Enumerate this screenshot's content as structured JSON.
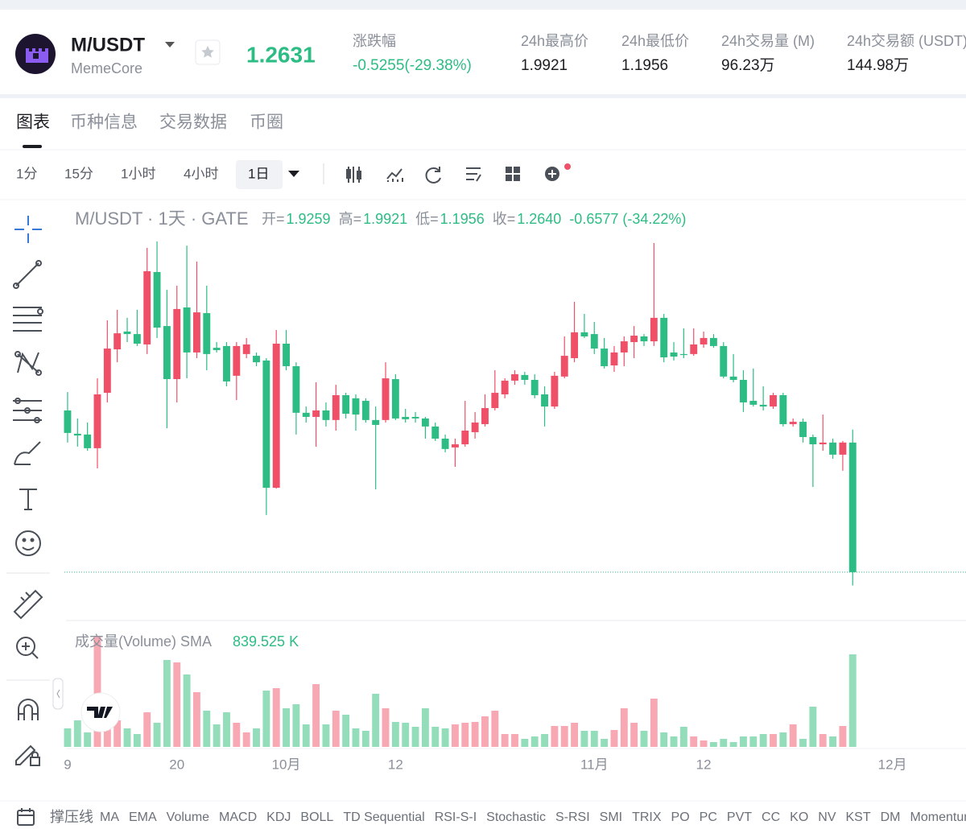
{
  "header": {
    "symbol": "M/USDT",
    "name": "MemeCore",
    "price": "1.2631",
    "change_label": "涨跌幅",
    "change": "-0.5255(-29.38%)",
    "stats": [
      {
        "label": "24h最高价",
        "value": "1.9921"
      },
      {
        "label": "24h最低价",
        "value": "1.1956"
      },
      {
        "label": "24h交易量 (M)",
        "value": "96.23万"
      },
      {
        "label": "24h交易额 (USDT)",
        "value": "144.98万"
      }
    ]
  },
  "tabs": [
    "图表",
    "币种信息",
    "交易数据",
    "币圈"
  ],
  "intervals": [
    "1分",
    "15分",
    "1小时",
    "4小时",
    "1日"
  ],
  "chart_data": {
    "type": "candlestick",
    "title": "M/USDT · 1天 · GATE",
    "legend": [
      {
        "label": "开=",
        "value": "1.9259"
      },
      {
        "label": "高=",
        "value": "1.9921"
      },
      {
        "label": "低=",
        "value": "1.1956"
      },
      {
        "label": "收=",
        "value": "1.2640"
      }
    ],
    "change": "-0.6577 (-34.22%)",
    "up_color": "#ef5068",
    "down_color": "#2dbd84",
    "volume_up_color": "#f7a8b3",
    "volume_down_color": "#93ddbb",
    "xlim": [
      -0.32,
      90.4
    ],
    "xticks": [
      {
        "value": 0,
        "label": "9"
      },
      {
        "value": 11,
        "label": "20"
      },
      {
        "value": 22,
        "label": "10月"
      },
      {
        "value": 33,
        "label": "12"
      },
      {
        "value": 53,
        "label": "11月"
      },
      {
        "value": 64,
        "label": "12"
      },
      {
        "value": 83,
        "label": "12月"
      }
    ],
    "ylim": [
      1.021,
      3.138
    ],
    "ohlc": [
      [
        2.09,
        2.184,
        1.926,
        1.975
      ],
      [
        1.971,
        2.049,
        1.905,
        1.962
      ],
      [
        1.967,
        2.028,
        1.884,
        1.897
      ],
      [
        1.897,
        2.254,
        1.794,
        2.172
      ],
      [
        2.18,
        2.55,
        2.131,
        2.406
      ],
      [
        2.402,
        2.604,
        2.336,
        2.484
      ],
      [
        2.493,
        2.563,
        2.439,
        2.48
      ],
      [
        2.48,
        2.604,
        2.419,
        2.431
      ],
      [
        2.427,
        2.92,
        2.378,
        2.801
      ],
      [
        2.797,
        2.953,
        2.46,
        2.513
      ],
      [
        2.521,
        2.706,
        1.999,
        2.25
      ],
      [
        2.25,
        2.727,
        2.131,
        2.608
      ],
      [
        2.616,
        2.932,
        2.254,
        2.386
      ],
      [
        2.386,
        2.85,
        2.357,
        2.591
      ],
      [
        2.587,
        2.727,
        2.295,
        2.378
      ],
      [
        2.41,
        2.439,
        2.386,
        2.398
      ],
      [
        2.419,
        2.439,
        2.213,
        2.238
      ],
      [
        2.267,
        2.439,
        2.143,
        2.419
      ],
      [
        2.378,
        2.46,
        2.357,
        2.427
      ],
      [
        2.369,
        2.386,
        2.316,
        2.336
      ],
      [
        2.345,
        2.357,
        1.556,
        1.695
      ],
      [
        1.695,
        2.501,
        1.691,
        2.431
      ],
      [
        2.431,
        2.501,
        2.295,
        2.316
      ],
      [
        2.316,
        2.336,
        1.967,
        2.078
      ],
      [
        2.078,
        2.11,
        2.028,
        2.057
      ],
      [
        2.057,
        2.234,
        1.905,
        2.09
      ],
      [
        2.09,
        2.131,
        2.008,
        2.041
      ],
      [
        2.041,
        2.221,
        1.987,
        2.168
      ],
      [
        2.168,
        2.18,
        2.049,
        2.073
      ],
      [
        2.152,
        2.172,
        1.987,
        2.069
      ],
      [
        2.139,
        2.152,
        2.028,
        2.041
      ],
      [
        2.041,
        2.11,
        1.687,
        2.016
      ],
      [
        2.041,
        2.336,
        2.028,
        2.254
      ],
      [
        2.25,
        2.275,
        2.041,
        2.049
      ],
      [
        2.057,
        2.098,
        2.028,
        2.045
      ],
      [
        2.057,
        2.082,
        2.028,
        2.049
      ],
      [
        2.049,
        2.057,
        1.946,
        2.008
      ],
      [
        2.008,
        2.028,
        1.934,
        1.946
      ],
      [
        1.946,
        1.967,
        1.876,
        1.893
      ],
      [
        1.901,
        1.946,
        1.802,
        1.917
      ],
      [
        1.917,
        2.139,
        1.905,
        1.987
      ],
      [
        1.979,
        2.082,
        1.946,
        2.028
      ],
      [
        2.02,
        2.172,
        2.008,
        2.102
      ],
      [
        2.102,
        2.295,
        2.09,
        2.18
      ],
      [
        2.172,
        2.254,
        2.152,
        2.242
      ],
      [
        2.242,
        2.295,
        2.221,
        2.275
      ],
      [
        2.271,
        2.287,
        2.221,
        2.246
      ],
      [
        2.246,
        2.275,
        2.152,
        2.168
      ],
      [
        2.172,
        2.213,
        2.008,
        2.11
      ],
      [
        2.11,
        2.287,
        2.098,
        2.267
      ],
      [
        2.263,
        2.468,
        2.254,
        2.369
      ],
      [
        2.357,
        2.645,
        2.336,
        2.489
      ],
      [
        2.489,
        2.583,
        2.46,
        2.468
      ],
      [
        2.48,
        2.542,
        2.378,
        2.406
      ],
      [
        2.406,
        2.46,
        2.304,
        2.316
      ],
      [
        2.32,
        2.419,
        2.287,
        2.386
      ],
      [
        2.386,
        2.468,
        2.316,
        2.443
      ],
      [
        2.439,
        2.521,
        2.357,
        2.472
      ],
      [
        2.468,
        2.48,
        2.419,
        2.443
      ],
      [
        2.443,
        2.945,
        2.419,
        2.563
      ],
      [
        2.563,
        2.583,
        2.336,
        2.361
      ],
      [
        2.386,
        2.439,
        2.345,
        2.365
      ],
      [
        2.378,
        2.509,
        2.357,
        2.373
      ],
      [
        2.378,
        2.509,
        2.369,
        2.427
      ],
      [
        2.427,
        2.493,
        2.41,
        2.46
      ],
      [
        2.46,
        2.48,
        2.41,
        2.419
      ],
      [
        2.419,
        2.439,
        2.254,
        2.263
      ],
      [
        2.263,
        2.378,
        2.234,
        2.246
      ],
      [
        2.246,
        2.295,
        2.082,
        2.131
      ],
      [
        2.139,
        2.304,
        2.11,
        2.119
      ],
      [
        2.119,
        2.213,
        2.09,
        2.11
      ],
      [
        2.11,
        2.18,
        2.098,
        2.168
      ],
      [
        2.168,
        2.18,
        2.008,
        2.02
      ],
      [
        2.02,
        2.049,
        2.008,
        2.032
      ],
      [
        2.032,
        2.049,
        1.926,
        1.954
      ],
      [
        1.954,
        1.967,
        1.699,
        1.917
      ],
      [
        1.917,
        2.069,
        1.884,
        1.926
      ],
      [
        1.926,
        1.946,
        1.843,
        1.864
      ],
      [
        1.864,
        1.934,
        1.782,
        1.926
      ],
      [
        1.9259,
        1.9921,
        1.1956,
        1.264
      ]
    ],
    "volume": {
      "title": "成交量(Volume) SMA",
      "sma": "839.525 K",
      "ylim": [
        0,
        3060
      ],
      "values": [
        460,
        660,
        360,
        2760,
        460,
        660,
        460,
        320,
        860,
        600,
        2160,
        2100,
        1800,
        1360,
        900,
        560,
        860,
        600,
        360,
        460,
        1400,
        1460,
        960,
        1060,
        560,
        1560,
        560,
        900,
        800,
        460,
        400,
        1320,
        960,
        620,
        600,
        500,
        960,
        500,
        460,
        560,
        600,
        620,
        760,
        900,
        320,
        320,
        200,
        260,
        320,
        520,
        520,
        600,
        400,
        400,
        200,
        420,
        960,
        600,
        400,
        1200,
        360,
        260,
        500,
        260,
        160,
        120,
        200,
        120,
        260,
        260,
        320,
        320,
        360,
        560,
        200,
        1000,
        320,
        260,
        520,
        2300
      ]
    }
  },
  "indicators": [
    "撑压线",
    "MA",
    "EMA",
    "Volume",
    "MACD",
    "KDJ",
    "BOLL",
    "TD Sequential",
    "RSI-S-I",
    "Stochastic",
    "S-RSI",
    "SMI",
    "TRIX",
    "PO",
    "PC",
    "PVT",
    "CC",
    "KO",
    "NV",
    "KST",
    "DM",
    "Momentum"
  ]
}
